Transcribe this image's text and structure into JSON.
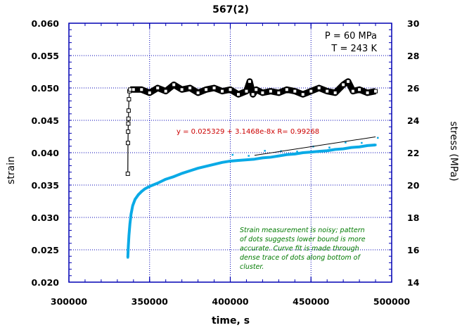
{
  "chart_data": {
    "type": "scatter",
    "title": "567(2)",
    "xlabel": "time, s",
    "ylabel": "strain",
    "y2label": "stress (MPa)",
    "xlim": [
      300000,
      500000
    ],
    "ylim": [
      0.02,
      0.06
    ],
    "y2lim": [
      14,
      30
    ],
    "x_ticks": [
      "300000",
      "350000",
      "400000",
      "450000",
      "500000"
    ],
    "y_ticks": [
      "0.020",
      "0.025",
      "0.030",
      "0.035",
      "0.040",
      "0.045",
      "0.050",
      "0.055",
      "0.060"
    ],
    "y2_ticks": [
      "14",
      "16",
      "18",
      "20",
      "22",
      "24",
      "26",
      "28",
      "30"
    ],
    "grid": true,
    "conditions": [
      "P = 60 MPa",
      "T = 243 K"
    ],
    "fit_label": "y = 0.025329 + 3.1468e-8x   R= 0.99268",
    "fit": {
      "intercept": 0.025329,
      "slope": 3.1468e-08,
      "R": 0.99268,
      "x_range": [
        415000,
        490000
      ]
    },
    "note_lines": [
      "Strain measurement is noisy; pattern",
      "of dots suggests lower bound is more",
      "accurate.  Curve fit is made through",
      "dense trace of dots along bottom of",
      "cluster."
    ],
    "colors": {
      "stress": "#000000",
      "strain": "#0aaae6",
      "fit_line": "#000000",
      "fit_text": "#cc0000",
      "note": "#007a00",
      "axes": "#0000b4"
    },
    "series": [
      {
        "name": "stress (MPa)",
        "axis": "right",
        "style": "line-squares",
        "x": [
          336500,
          336600,
          336700,
          336800,
          336900,
          337000,
          337200,
          337500,
          338000,
          340000,
          345000,
          350000,
          355000,
          360000,
          365000,
          370000,
          375000,
          380000,
          385000,
          390000,
          395000,
          400000,
          405000,
          410000,
          412000,
          414000,
          416000,
          420000,
          425000,
          430000,
          435000,
          440000,
          445000,
          450000,
          455000,
          460000,
          465000,
          470000,
          473000,
          476000,
          480000,
          485000,
          490000
        ],
        "y": [
          20.7,
          22.6,
          23.3,
          23.8,
          24.1,
          24.6,
          25.3,
          25.8,
          25.9,
          25.9,
          25.9,
          25.7,
          26.0,
          25.8,
          26.2,
          25.9,
          26.0,
          25.7,
          25.9,
          26.0,
          25.8,
          25.9,
          25.6,
          25.8,
          26.4,
          25.6,
          25.9,
          25.7,
          25.8,
          25.7,
          25.9,
          25.8,
          25.6,
          25.8,
          26.0,
          25.8,
          25.7,
          26.2,
          26.4,
          25.8,
          25.9,
          25.7,
          25.8
        ]
      },
      {
        "name": "strain",
        "axis": "left",
        "style": "dots",
        "x": [
          336500,
          336800,
          337200,
          337800,
          338500,
          339500,
          341000,
          343000,
          345000,
          347000,
          350000,
          355000,
          360000,
          365000,
          370000,
          375000,
          380000,
          385000,
          390000,
          395000,
          400000,
          405000,
          410000,
          415000,
          420000,
          425000,
          430000,
          435000,
          440000,
          445000,
          450000,
          455000,
          460000,
          465000,
          470000,
          475000,
          480000,
          485000,
          490000
        ],
        "y": [
          0.0238,
          0.0255,
          0.0272,
          0.029,
          0.0305,
          0.0318,
          0.0328,
          0.0335,
          0.034,
          0.0344,
          0.0348,
          0.0353,
          0.0359,
          0.0363,
          0.0368,
          0.0372,
          0.0376,
          0.0379,
          0.0382,
          0.0385,
          0.0387,
          0.0388,
          0.0389,
          0.039,
          0.0392,
          0.0393,
          0.0395,
          0.0397,
          0.0398,
          0.04,
          0.0401,
          0.0402,
          0.0403,
          0.0405,
          0.0406,
          0.0408,
          0.0409,
          0.0411,
          0.0412
        ]
      }
    ]
  }
}
